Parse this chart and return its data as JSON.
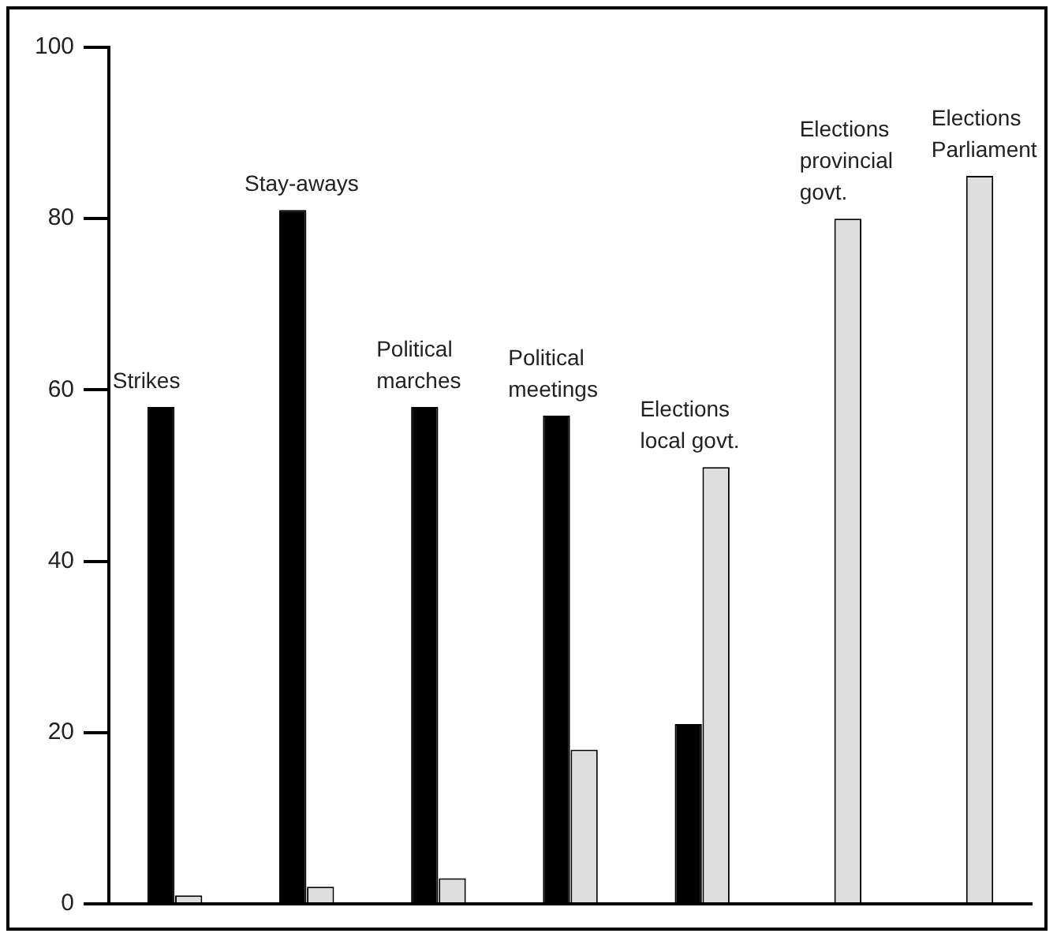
{
  "chart_data": {
    "type": "bar",
    "categories": [
      "Strikes",
      "Stay-aways",
      "Political marches",
      "Political meetings",
      "Elections local govt.",
      "Elections provincial govt.",
      "Elections Parliament"
    ],
    "series": [
      {
        "color": "#000000",
        "values": [
          58,
          81,
          58,
          57,
          21,
          null,
          null
        ]
      },
      {
        "color": "#dedede",
        "values": [
          1,
          2,
          3,
          18,
          51,
          80,
          85
        ]
      }
    ],
    "ylim": [
      0,
      100
    ],
    "yticks": [
      0,
      20,
      40,
      60,
      80,
      100
    ],
    "grid": false,
    "legend": false,
    "tick_labels": "y"
  }
}
